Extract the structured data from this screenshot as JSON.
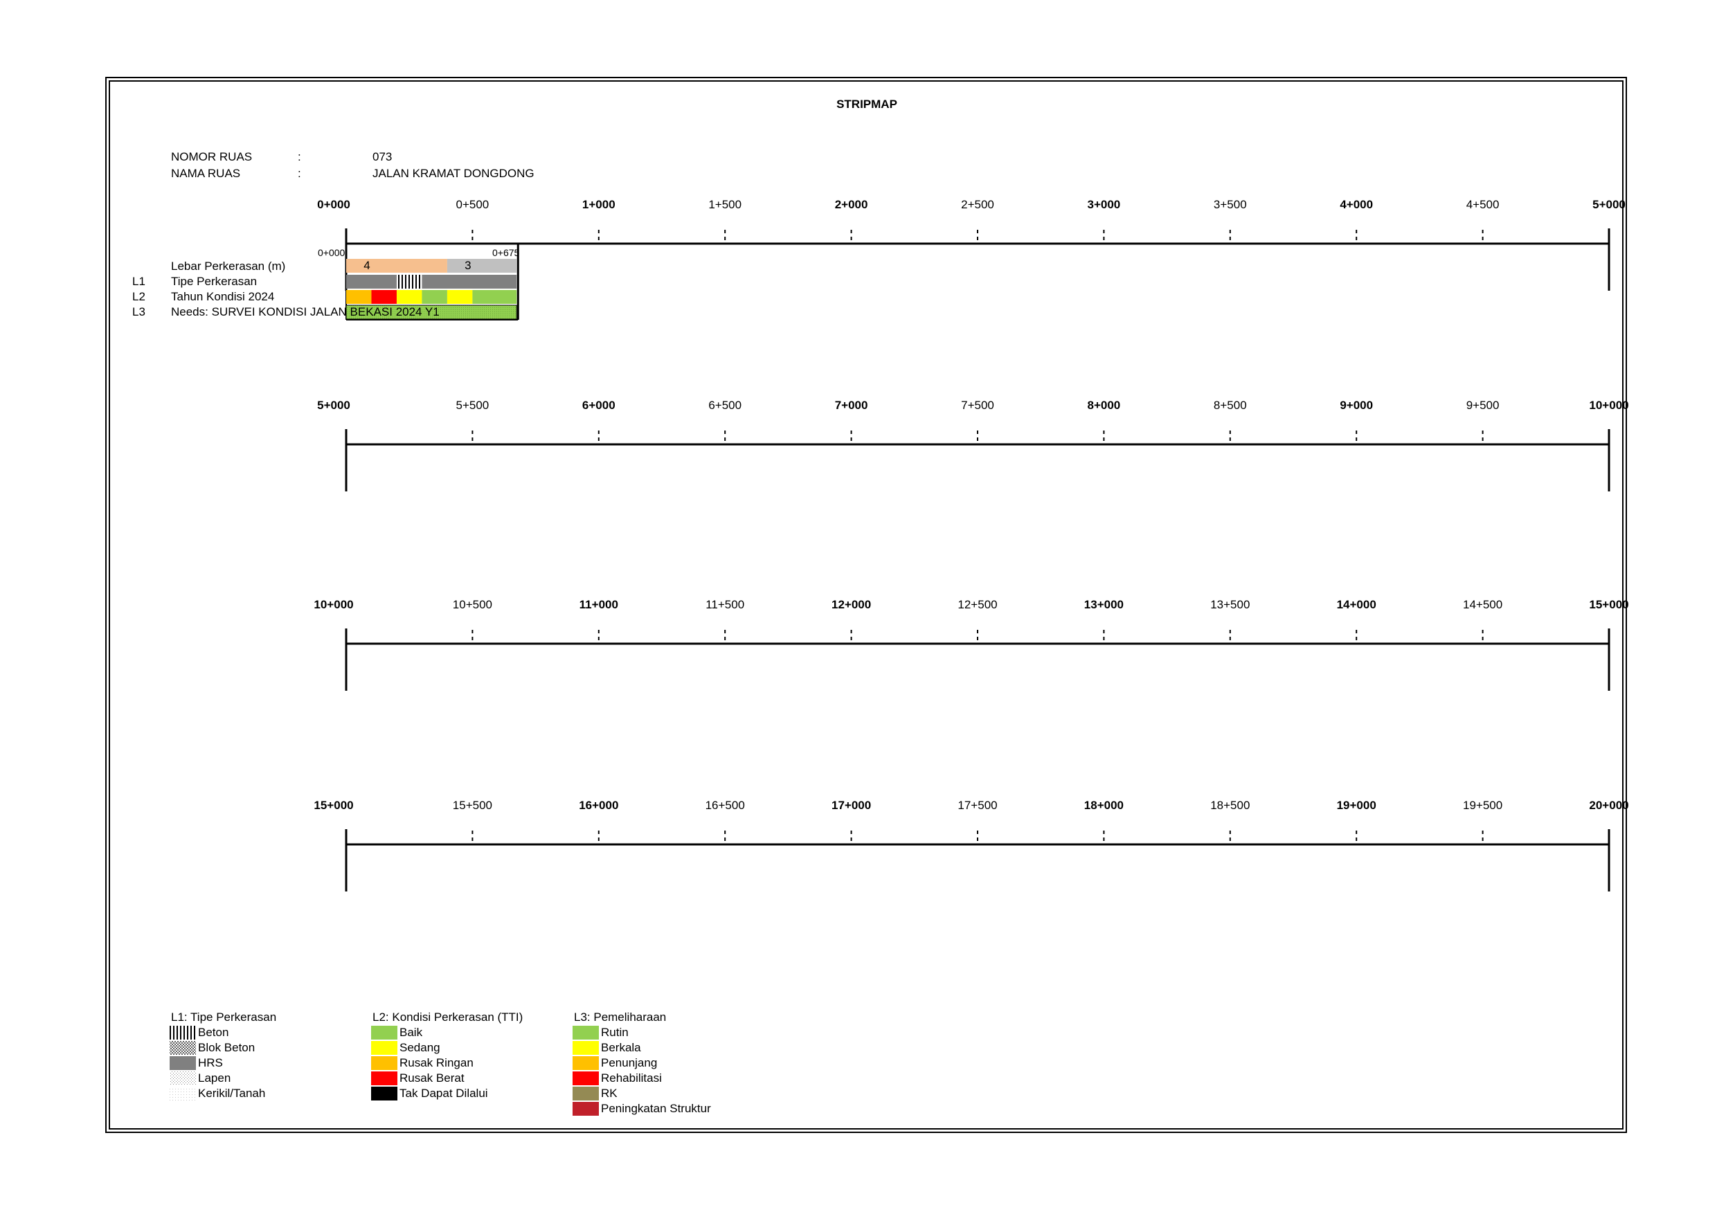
{
  "title": "STRIPMAP",
  "info": {
    "nomor_label": "NOMOR RUAS",
    "nomor_sep": ":",
    "nomor_value": "073",
    "nama_label": "NAMA RUAS",
    "nama_sep": ":",
    "nama_value": "JALAN KRAMAT DONGDONG"
  },
  "strips": [
    {
      "ticks": [
        "0+000",
        "0+500",
        "1+000",
        "1+500",
        "2+000",
        "2+500",
        "3+000",
        "3+500",
        "4+000",
        "4+500",
        "5+000"
      ]
    },
    {
      "ticks": [
        "5+000",
        "5+500",
        "6+000",
        "6+500",
        "7+000",
        "7+500",
        "8+000",
        "8+500",
        "9+000",
        "9+500",
        "10+000"
      ]
    },
    {
      "ticks": [
        "10+000",
        "10+500",
        "11+000",
        "11+500",
        "12+000",
        "12+500",
        "13+000",
        "13+500",
        "14+000",
        "14+500",
        "15+000"
      ]
    },
    {
      "ticks": [
        "15+000",
        "15+500",
        "16+000",
        "16+500",
        "17+000",
        "17+500",
        "18+000",
        "18+500",
        "19+000",
        "19+500",
        "20+000"
      ]
    }
  ],
  "segment": {
    "start_label": "0+000",
    "end_label": "0+675",
    "start_km": 0,
    "end_km": 0.675
  },
  "rows": [
    {
      "code": "",
      "label": "Lebar Perkerasan (m)"
    },
    {
      "code": "L1",
      "label": "Tipe Perkerasan"
    },
    {
      "code": "L2",
      "label": "Tahun Kondisi 2024"
    },
    {
      "code": "L3",
      "label": "Needs: SURVEI KONDISI JALAN BEKASI 2024 Y1"
    }
  ],
  "lebar": [
    {
      "from": 0,
      "to": 0.4,
      "value": "4",
      "color": "#f6bf8e"
    },
    {
      "from": 0.4,
      "to": 0.675,
      "value": "3",
      "color": "#c0c0c0"
    }
  ],
  "tipe": [
    {
      "from": 0,
      "to": 0.2,
      "type": "HRS"
    },
    {
      "from": 0.2,
      "to": 0.3,
      "type": "Beton"
    },
    {
      "from": 0.3,
      "to": 0.675,
      "type": "HRS"
    }
  ],
  "kondisi": [
    {
      "from": 0,
      "to": 0.1,
      "color": "#ffc000"
    },
    {
      "from": 0.1,
      "to": 0.2,
      "color": "#ff0000"
    },
    {
      "from": 0.2,
      "to": 0.3,
      "color": "#ffff00"
    },
    {
      "from": 0.3,
      "to": 0.4,
      "color": "#92d050"
    },
    {
      "from": 0.4,
      "to": 0.5,
      "color": "#ffff00"
    },
    {
      "from": 0.5,
      "to": 0.675,
      "color": "#92d050"
    }
  ],
  "needs": [
    {
      "from": 0,
      "to": 0.675,
      "color": "#92d050"
    }
  ],
  "legend": {
    "l1": {
      "title": "L1: Tipe Perkerasan",
      "items": [
        {
          "label": "Beton",
          "pattern": "vertical-lines"
        },
        {
          "label": "Blok Beton",
          "pattern": "dots-dense"
        },
        {
          "label": "HRS",
          "pattern": "solid-grey"
        },
        {
          "label": "Lapen",
          "pattern": "dots-light"
        },
        {
          "label": "Kerikil/Tanah",
          "pattern": "dots-faint"
        }
      ]
    },
    "l2": {
      "title": "L2: Kondisi Perkerasan (TTI)",
      "items": [
        {
          "label": "Baik",
          "color": "#92d050"
        },
        {
          "label": "Sedang",
          "color": "#ffff00"
        },
        {
          "label": "Rusak Ringan",
          "color": "#ffc000"
        },
        {
          "label": "Rusak Berat",
          "color": "#ff0000"
        },
        {
          "label": "Tak Dapat Dilalui",
          "color": "#000000"
        }
      ]
    },
    "l3": {
      "title": "L3: Pemeliharaan",
      "items": [
        {
          "label": "Rutin",
          "color": "#92d050"
        },
        {
          "label": "Berkala",
          "color": "#ffff00"
        },
        {
          "label": "Penunjang",
          "color": "#ffc000"
        },
        {
          "label": "Rehabilitasi",
          "color": "#ff0000"
        },
        {
          "label": "RK",
          "color": "#948a54"
        },
        {
          "label": "Peningkatan Struktur",
          "color": "#c0202a"
        }
      ]
    }
  }
}
